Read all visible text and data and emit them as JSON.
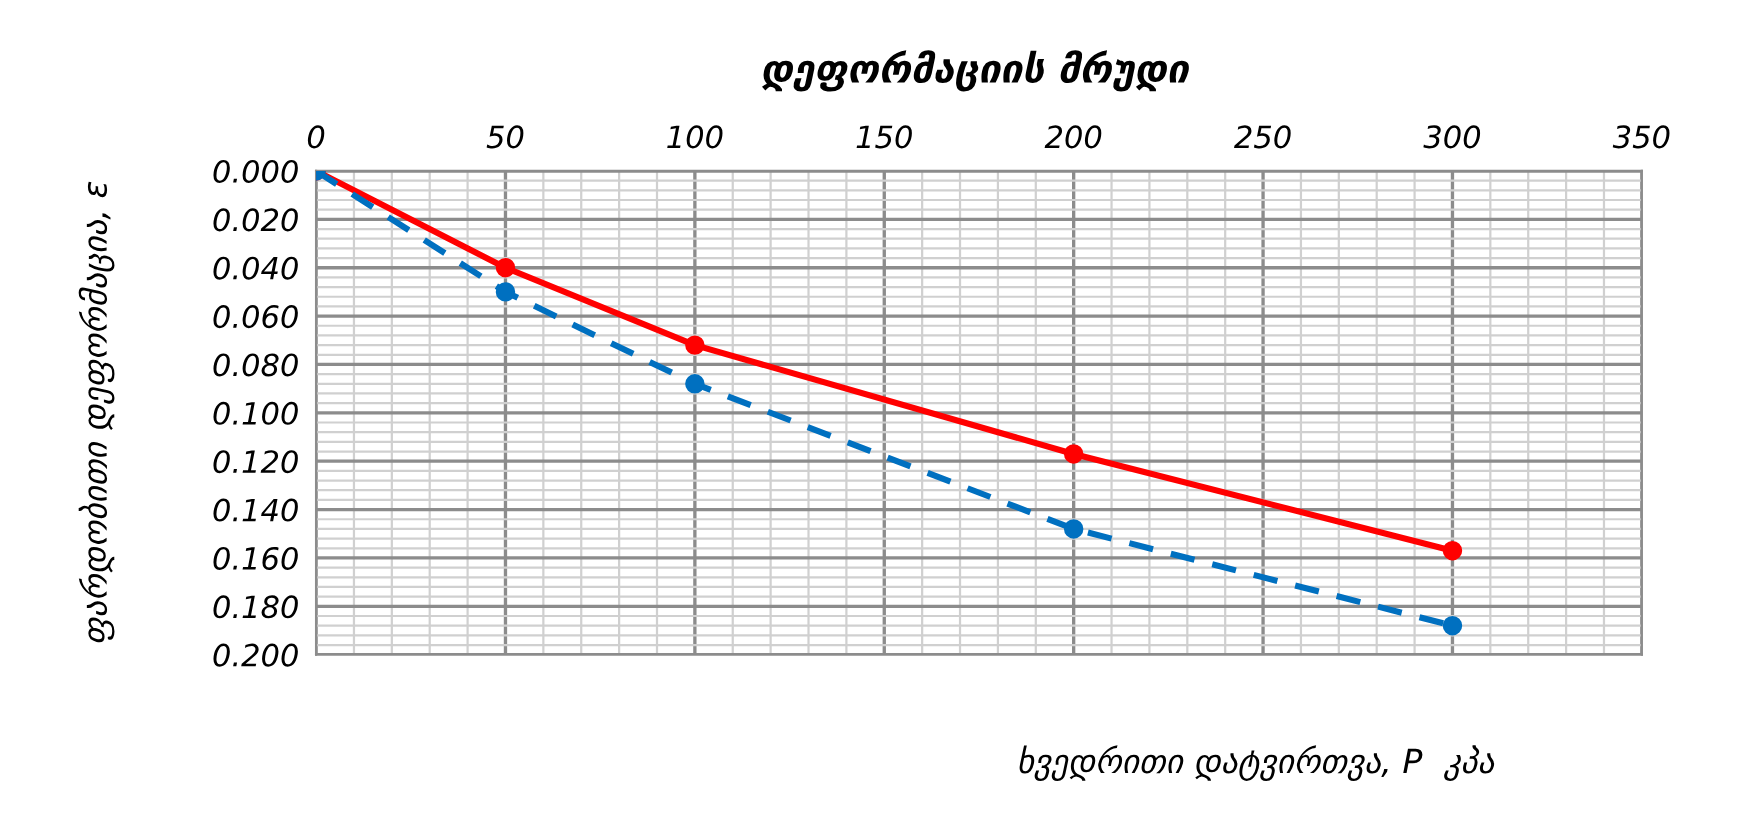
{
  "chart_data": {
    "type": "line",
    "title": "დეფორმაციის მრუდი",
    "xlabel": "ხვედრითი დატვირთვა, P  კპა",
    "ylabel": "ფარდობითი დეფორმაცია, ε",
    "x": [
      0,
      50,
      100,
      200,
      300
    ],
    "series": [
      {
        "color": "#ff0000",
        "values": [
          0,
          0.04,
          0.072,
          0.117,
          0.157
        ],
        "line_style": "solid"
      },
      {
        "color": "#0070c0",
        "values": [
          0,
          0.05,
          0.088,
          0.148,
          0.188
        ],
        "line_style": "dashed"
      }
    ],
    "xlim": [
      0,
      350
    ],
    "xticks": [
      0,
      50,
      100,
      150,
      200,
      250,
      300,
      350
    ],
    "ylim": [
      0.2,
      0
    ],
    "yticks": [
      {
        "value": 0,
        "label": "0.000"
      },
      {
        "value": 0.02,
        "label": "0.020"
      },
      {
        "value": 0.04,
        "label": "0.040"
      },
      {
        "value": 0.06,
        "label": "0.060"
      },
      {
        "value": 0.08,
        "label": "0.080"
      },
      {
        "value": 0.1,
        "label": "0.100"
      },
      {
        "value": 0.12,
        "label": "0.120"
      },
      {
        "value": 0.14,
        "label": "0.140"
      },
      {
        "value": 0.16,
        "label": "0.160"
      },
      {
        "value": 0.18,
        "label": "0.180"
      },
      {
        "value": 0.2,
        "label": "0.200"
      }
    ],
    "grid": true,
    "marker": "circle"
  }
}
